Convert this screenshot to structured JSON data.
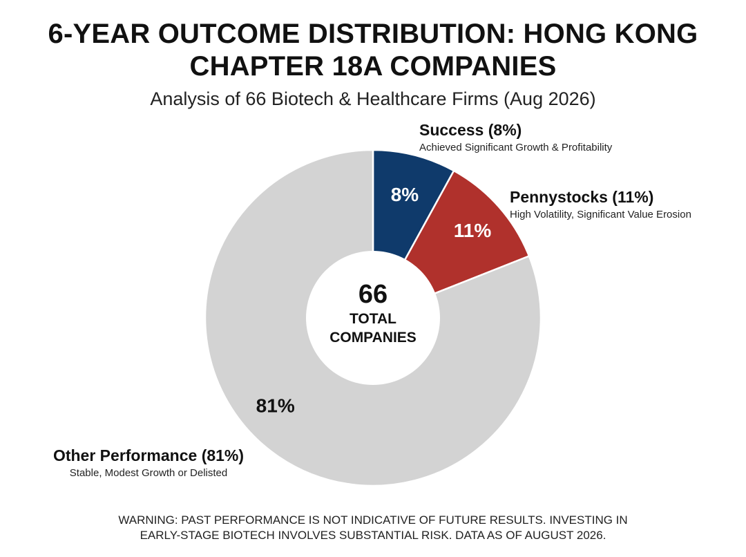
{
  "title_line1": "6-YEAR OUTCOME DISTRIBUTION: HONG KONG",
  "title_line2": "CHAPTER 18A COMPANIES",
  "subtitle": "Analysis of 66 Biotech & Healthcare Firms (Aug 2026)",
  "center": {
    "number": "66",
    "line1": "TOTAL",
    "line2": "COMPANIES"
  },
  "footer": {
    "line1": "WARNING: PAST PERFORMANCE IS NOT INDICATIVE OF FUTURE RESULTS. INVESTING IN",
    "line2": "EARLY-STAGE BIOTECH INVOLVES SUBSTANTIAL RISK. DATA AS OF AUGUST 2026."
  },
  "chart_data": {
    "type": "pie",
    "title": "6-YEAR OUTCOME DISTRIBUTION: HONG KONG CHAPTER 18A COMPANIES",
    "subtitle": "Analysis of 66 Biotech & Healthcare Firms (Aug 2026)",
    "total": 66,
    "slices": [
      {
        "name": "Success (8%)",
        "description": "Achieved Significant Growth & Profitability",
        "value": 8,
        "label": "8%",
        "color": "#0f3a6b",
        "label_color": "#ffffff"
      },
      {
        "name": "Pennystocks (11%)",
        "description": "High Volatility, Significant Value Erosion",
        "value": 11,
        "label": "11%",
        "color": "#b0312c",
        "label_color": "#ffffff"
      },
      {
        "name": "Other Performance (81%)",
        "description": "Stable, Modest Growth or Delisted",
        "value": 81,
        "label": "81%",
        "color": "#d3d3d3",
        "label_color": "#111111"
      }
    ]
  }
}
